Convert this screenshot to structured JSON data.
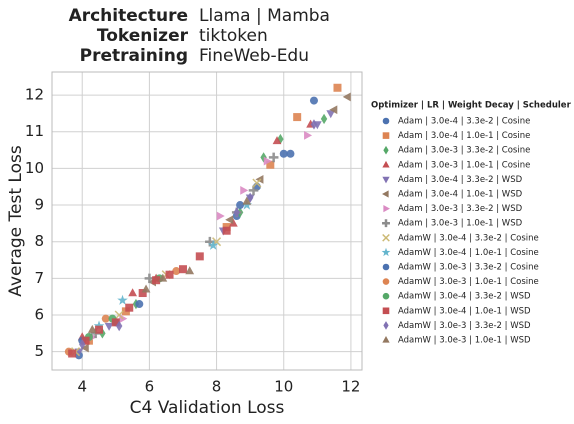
{
  "header": [
    {
      "key": "Architecture",
      "value": "Llama  |  Mamba"
    },
    {
      "key": "Tokenizer",
      "value": "tiktoken"
    },
    {
      "key": "Pretraining",
      "value": "FineWeb-Edu"
    }
  ],
  "chart_data": {
    "type": "scatter",
    "xlabel": "C4 Validation Loss",
    "ylabel": "Average Test Loss",
    "legend_title": "Optimizer  |  LR  |  Weight Decay  |  Scheduler",
    "grid": true,
    "xlim": [
      3.1,
      12.33
    ],
    "xticks": [
      4,
      6,
      8,
      10,
      12
    ],
    "ylim": [
      4.5,
      12.63
    ],
    "yticks": [
      5,
      6,
      7,
      8,
      9,
      10,
      11,
      12
    ],
    "series": [
      {
        "name": "Adam  |  3.0e-4  |  3.3e-2  |  Cosine",
        "color": "#4c72b0",
        "marker": "circle",
        "x": [
          3.9,
          5.0,
          8.6,
          9.2,
          10.0,
          10.9
        ],
        "values": [
          4.9,
          5.8,
          8.7,
          9.5,
          10.4,
          11.85
        ]
      },
      {
        "name": "Adam  |  3.0e-4  |  1.0e-1  |  Cosine",
        "color": "#dd8452",
        "marker": "square",
        "x": [
          4.2,
          5.3,
          8.3,
          9.6,
          10.4,
          11.6
        ],
        "values": [
          5.3,
          6.1,
          8.4,
          10.1,
          11.4,
          12.2
        ]
      },
      {
        "name": "Adam  |  3.0e-3  |  3.3e-2  |  Cosine",
        "color": "#55a868",
        "marker": "diamond",
        "x": [
          4.6,
          5.6,
          8.7,
          9.4,
          9.9,
          11.2
        ],
        "values": [
          5.5,
          6.3,
          8.8,
          10.3,
          10.8,
          11.35
        ]
      },
      {
        "name": "Adam  |  3.0e-3  |  1.0e-1  |  Cosine",
        "color": "#c44e52",
        "marker": "triangle-up",
        "x": [
          4.0,
          5.5,
          6.2,
          8.5,
          9.8,
          10.8
        ],
        "values": [
          5.4,
          6.6,
          7.0,
          8.5,
          10.75,
          11.2
        ]
      },
      {
        "name": "Adam  |  3.0e-4  |  3.3e-2  |  WSD",
        "color": "#8172b3",
        "marker": "triangle-down",
        "x": [
          3.9,
          4.8,
          8.2,
          9.0,
          11.0,
          11.4
        ],
        "values": [
          5.0,
          5.7,
          8.3,
          9.2,
          11.2,
          11.5
        ]
      },
      {
        "name": "Adam  |  3.0e-4  |  1.0e-1  |  WSD",
        "color": "#937860",
        "marker": "triangle-left",
        "x": [
          4.1,
          6.1,
          8.4,
          9.3,
          11.5,
          11.9
        ],
        "values": [
          5.1,
          6.9,
          8.6,
          9.7,
          11.6,
          11.95
        ]
      },
      {
        "name": "Adam  |  3.0e-3  |  3.3e-2  |  WSD",
        "color": "#da8bc3",
        "marker": "triangle-right",
        "x": [
          4.3,
          5.2,
          8.1,
          8.8,
          9.5,
          10.7
        ],
        "values": [
          5.4,
          5.9,
          8.7,
          9.4,
          10.2,
          10.9
        ]
      },
      {
        "name": "Adam  |  3.0e-3  |  1.0e-1  |  WSD",
        "color": "#8c8c8c",
        "marker": "plus",
        "x": [
          4.4,
          6.0,
          7.8,
          8.6,
          9.1,
          9.7
        ],
        "values": [
          5.5,
          7.0,
          8.0,
          8.8,
          9.4,
          10.3
        ]
      },
      {
        "name": "AdamW  |  3.0e-4  |  3.3e-2  |  Cosine",
        "color": "#ccb974",
        "marker": "x",
        "x": [
          3.8,
          5.1,
          6.5,
          8.0,
          9.2
        ],
        "values": [
          5.0,
          6.0,
          7.1,
          8.0,
          9.6
        ]
      },
      {
        "name": "AdamW  |  3.0e-4  |  1.0e-1  |  Cosine",
        "color": "#64b5cd",
        "marker": "star",
        "x": [
          4.5,
          5.2,
          7.9,
          8.9
        ],
        "values": [
          5.7,
          6.4,
          7.9,
          9.0
        ]
      },
      {
        "name": "AdamW  |  3.0e-3  |  3.3e-2  |  Cosine",
        "color": "#4c72b0",
        "marker": "circle",
        "x": [
          4.0,
          5.7,
          8.7,
          10.2
        ],
        "values": [
          5.3,
          6.3,
          9.0,
          10.4
        ]
      },
      {
        "name": "AdamW  |  3.0e-3  |  1.0e-1  |  Cosine",
        "color": "#dd8452",
        "marker": "circle",
        "x": [
          3.6,
          4.7,
          6.8
        ],
        "values": [
          5.0,
          5.9,
          7.2
        ]
      },
      {
        "name": "AdamW  |  3.0e-4  |  3.3e-2  |  WSD",
        "color": "#55a868",
        "marker": "circle",
        "x": [
          4.2,
          4.9,
          6.3
        ],
        "values": [
          5.4,
          5.9,
          7.0
        ]
      },
      {
        "name": "AdamW  |  3.0e-4  |  1.0e-1  |  WSD",
        "color": "#c44e52",
        "marker": "square",
        "x": [
          3.7,
          4.1,
          4.5,
          5.0,
          5.4,
          5.8,
          6.2,
          6.6,
          7.0,
          7.5,
          8.3
        ],
        "values": [
          4.95,
          5.3,
          5.6,
          5.8,
          6.2,
          6.6,
          6.95,
          7.1,
          7.25,
          7.6,
          8.3
        ]
      },
      {
        "name": "AdamW  |  3.0e-3  |  3.3e-2  |  WSD",
        "color": "#8172b3",
        "marker": "diamond",
        "x": [
          4.0,
          5.1,
          8.6,
          9.0,
          10.9
        ],
        "values": [
          5.2,
          5.7,
          8.8,
          9.2,
          11.2
        ]
      },
      {
        "name": "AdamW  |  3.0e-3  |  1.0e-1  |  WSD",
        "color": "#937860",
        "marker": "triangle-up",
        "x": [
          4.3,
          5.9,
          6.4,
          7.2,
          8.9
        ],
        "values": [
          5.6,
          6.7,
          7.0,
          7.2,
          9.1
        ]
      }
    ]
  }
}
